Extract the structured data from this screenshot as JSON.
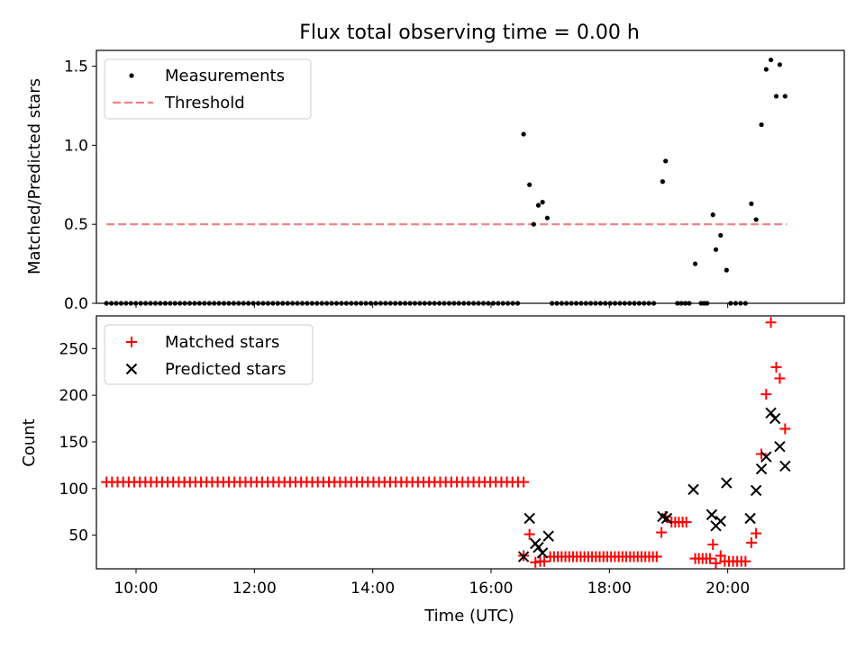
{
  "title": "Flux total observing time = 0.00 h",
  "colors": {
    "measurements": "#000000",
    "threshold": "#f08080",
    "matched": "#ff0000",
    "predicted": "#000000"
  },
  "chart_data": [
    {
      "type": "scatter",
      "ylabel": "Matched/Predicted stars",
      "xlim": [
        9.33,
        21.97
      ],
      "ylim": [
        0,
        1.6
      ],
      "yticks": [
        0.0,
        0.5,
        1.0,
        1.5
      ],
      "ytick_labels": [
        "0.0",
        "0.5",
        "1.0",
        "1.5"
      ],
      "legend": {
        "placement": "top-left",
        "entries": [
          "Measurements",
          "Threshold"
        ]
      },
      "threshold": {
        "name": "Threshold",
        "y": 0.5,
        "x": [
          9.5,
          21.0
        ]
      },
      "series": [
        {
          "name": "Measurements",
          "marker": "dot",
          "zero_runs": [
            {
              "start": 9.5,
              "end": 16.45,
              "count": 85
            },
            {
              "start": 17.03,
              "end": 18.75,
              "count": 22
            },
            {
              "start": 19.15,
              "end": 19.35,
              "count": 4
            },
            {
              "start": 19.55,
              "end": 19.65,
              "count": 3
            },
            {
              "start": 20.05,
              "end": 20.3,
              "count": 4
            }
          ],
          "points": [
            [
              16.55,
              1.07
            ],
            [
              16.65,
              0.75
            ],
            [
              16.72,
              0.5
            ],
            [
              16.8,
              0.62
            ],
            [
              16.87,
              0.64
            ],
            [
              16.95,
              0.54
            ],
            [
              18.9,
              0.77
            ],
            [
              18.95,
              0.9
            ],
            [
              19.45,
              0.25
            ],
            [
              19.75,
              0.56
            ],
            [
              19.8,
              0.34
            ],
            [
              19.88,
              0.43
            ],
            [
              19.98,
              0.21
            ],
            [
              20.4,
              0.63
            ],
            [
              20.48,
              0.53
            ],
            [
              20.57,
              1.13
            ],
            [
              20.65,
              1.48
            ],
            [
              20.73,
              1.54
            ],
            [
              20.82,
              1.31
            ],
            [
              20.88,
              1.51
            ],
            [
              20.97,
              1.31
            ]
          ]
        }
      ]
    },
    {
      "type": "scatter",
      "ylabel": "Count",
      "xlabel": "Time (UTC)",
      "xlim": [
        9.33,
        21.97
      ],
      "ylim": [
        14,
        285
      ],
      "yticks": [
        50,
        100,
        150,
        200,
        250
      ],
      "ytick_labels": [
        "50",
        "100",
        "150",
        "200",
        "250"
      ],
      "xticks": [
        10,
        12,
        14,
        16,
        18,
        20
      ],
      "xtick_labels": [
        "10:00",
        "12:00",
        "14:00",
        "16:00",
        "18:00",
        "20:00"
      ],
      "legend": {
        "placement": "top-left",
        "entries": [
          "Matched stars",
          "Predicted stars"
        ]
      },
      "series": [
        {
          "name": "Matched stars",
          "marker": "plus",
          "runs": [
            {
              "start": 9.5,
              "end": 16.55,
              "count": 76,
              "y": 107
            },
            {
              "start": 17.0,
              "end": 18.8,
              "count": 29,
              "y": 27
            },
            {
              "start": 19.05,
              "end": 19.3,
              "count": 5,
              "y": 64
            },
            {
              "start": 19.45,
              "end": 19.7,
              "count": 5,
              "y": 25
            },
            {
              "start": 19.95,
              "end": 20.3,
              "count": 6,
              "y": 22
            }
          ],
          "points": [
            [
              16.55,
              28
            ],
            [
              16.65,
              51
            ],
            [
              16.75,
              21
            ],
            [
              16.83,
              22
            ],
            [
              16.9,
              22
            ],
            [
              18.88,
              53
            ],
            [
              18.95,
              70
            ],
            [
              19.75,
              40
            ],
            [
              19.8,
              20
            ],
            [
              19.88,
              28
            ],
            [
              20.4,
              42
            ],
            [
              20.48,
              52
            ],
            [
              20.57,
              137
            ],
            [
              20.65,
              201
            ],
            [
              20.73,
              278
            ],
            [
              20.82,
              230
            ],
            [
              20.88,
              218
            ],
            [
              20.97,
              164
            ]
          ]
        },
        {
          "name": "Predicted stars",
          "marker": "x",
          "points": [
            [
              16.55,
              27
            ],
            [
              16.65,
              68
            ],
            [
              16.75,
              41
            ],
            [
              16.8,
              37
            ],
            [
              16.87,
              31
            ],
            [
              16.97,
              49
            ],
            [
              18.9,
              70
            ],
            [
              18.97,
              68
            ],
            [
              19.42,
              99
            ],
            [
              19.73,
              72
            ],
            [
              19.8,
              60
            ],
            [
              19.88,
              65
            ],
            [
              19.98,
              106
            ],
            [
              20.38,
              68
            ],
            [
              20.48,
              98
            ],
            [
              20.57,
              121
            ],
            [
              20.65,
              134
            ],
            [
              20.73,
              181
            ],
            [
              20.8,
              175
            ],
            [
              20.88,
              145
            ],
            [
              20.97,
              124
            ]
          ]
        }
      ]
    }
  ]
}
